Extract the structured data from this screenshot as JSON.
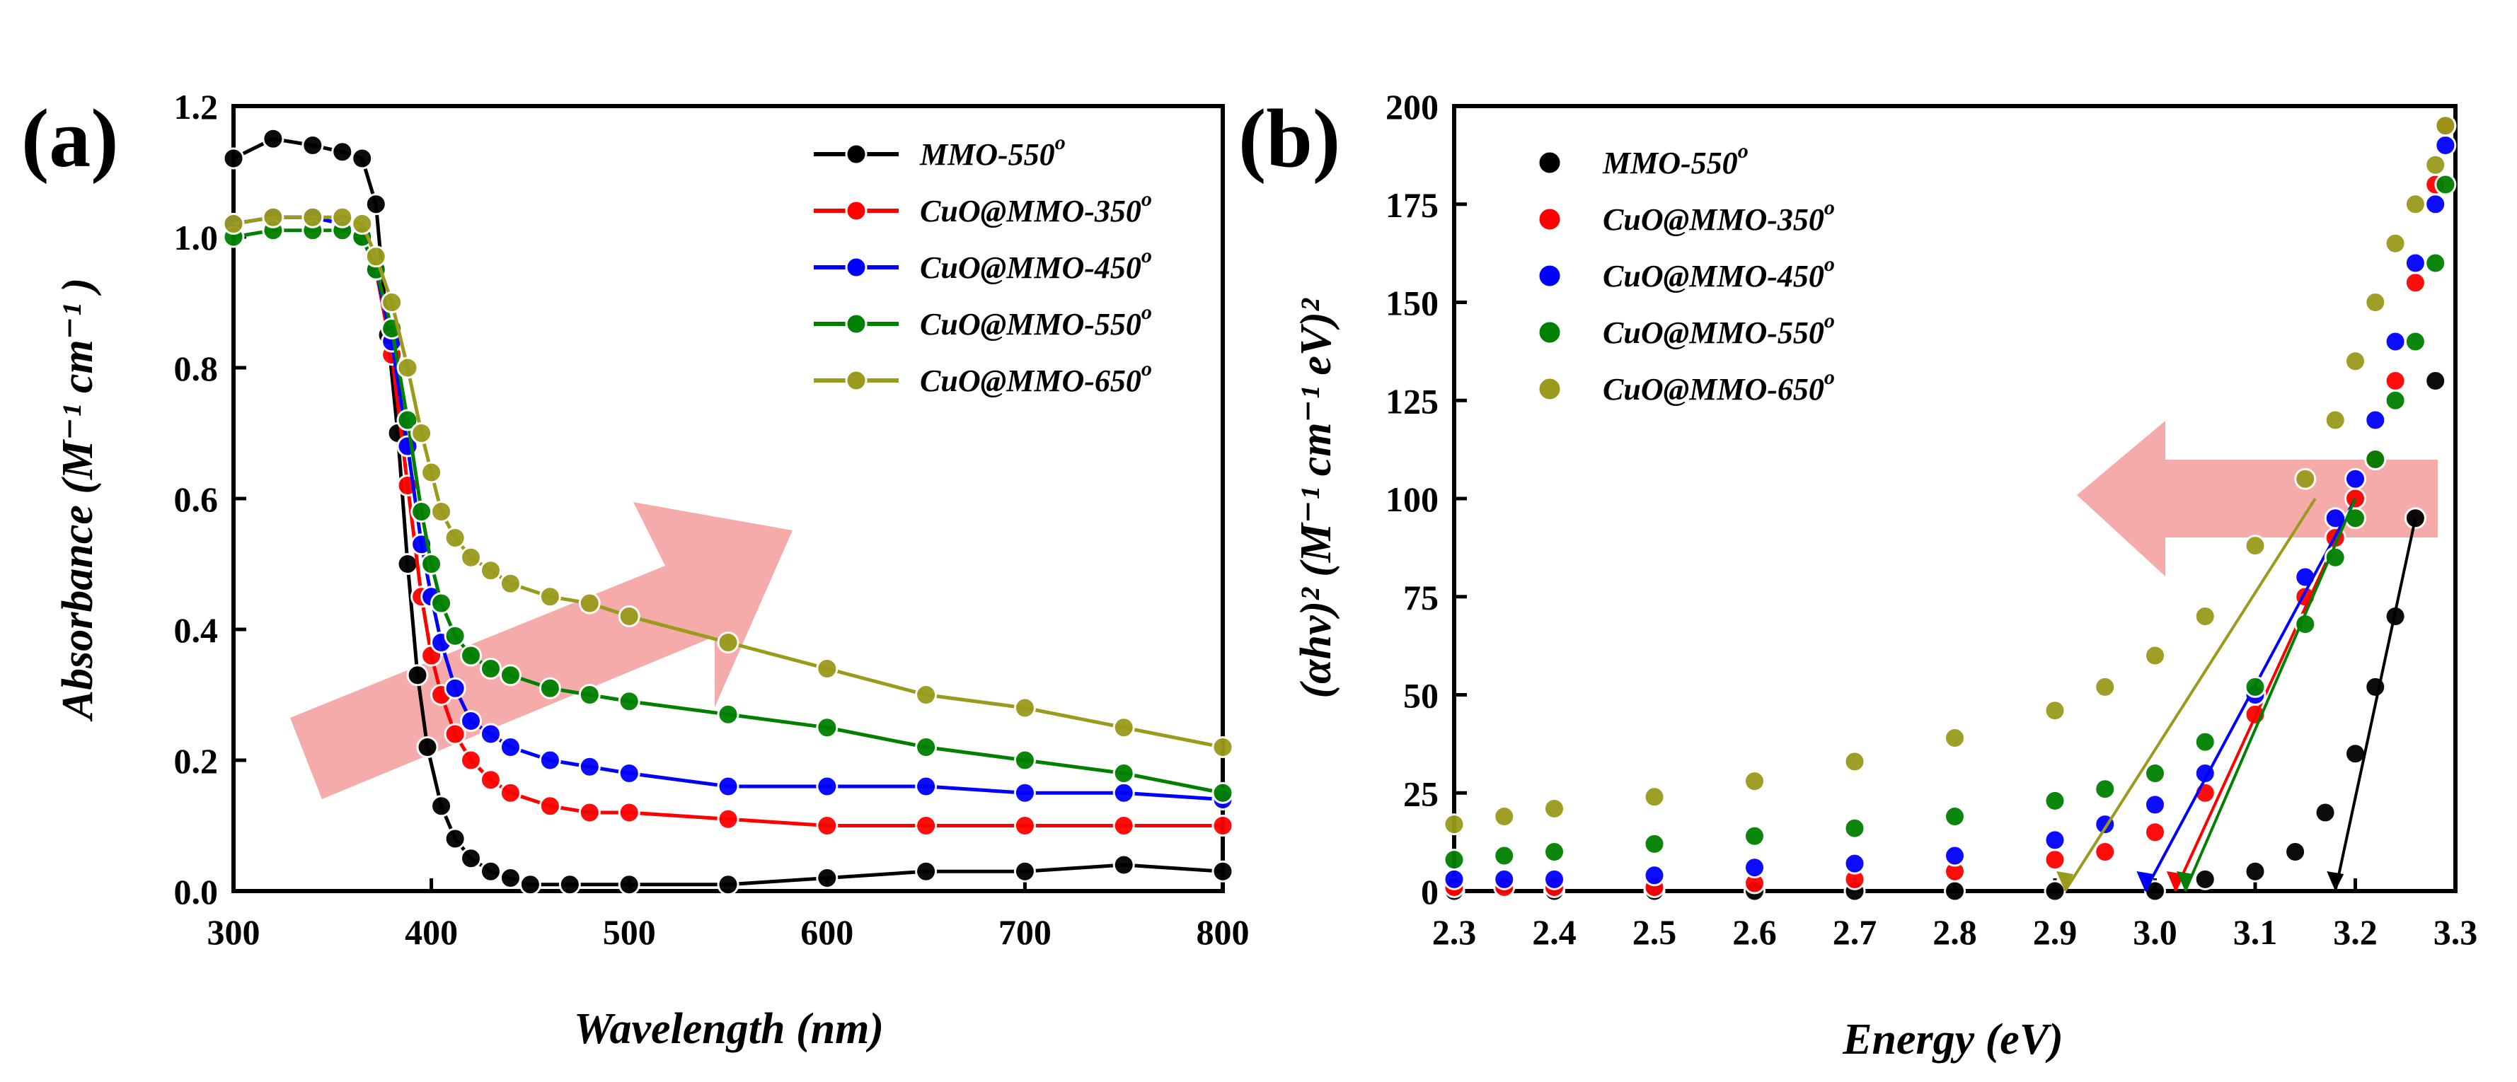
{
  "chart_data": [
    {
      "type": "line",
      "panel_label": "(a)",
      "xlabel": "Wavelength (nm)",
      "ylabel": "Absorbance (M⁻¹ cm⁻¹ )",
      "xlim": [
        300,
        800
      ],
      "ylim": [
        0,
        1.2
      ],
      "xticks": [
        300,
        400,
        500,
        600,
        700,
        800
      ],
      "yticks": [
        0.0,
        0.2,
        0.4,
        0.6,
        0.8,
        1.0,
        1.2
      ],
      "xtick_labels": [
        "300",
        "400",
        "500",
        "600",
        "700",
        "800"
      ],
      "ytick_labels": [
        "0.0",
        "0.2",
        "0.4",
        "0.6",
        "0.8",
        "1.0",
        "1.2"
      ],
      "legend_position": "top-right",
      "annotation": "arrow pointing toward longer wavelength / higher absorbance (red shift with temperature)",
      "series": [
        {
          "name": "MMO-550",
          "superscript": "o",
          "color": "#000000",
          "x": [
            300,
            320,
            340,
            355,
            365,
            372,
            378,
            383,
            388,
            393,
            398,
            405,
            412,
            420,
            430,
            440,
            450,
            470,
            500,
            550,
            600,
            650,
            700,
            750,
            800
          ],
          "y": [
            1.12,
            1.15,
            1.14,
            1.13,
            1.12,
            1.05,
            0.85,
            0.7,
            0.5,
            0.33,
            0.22,
            0.13,
            0.08,
            0.05,
            0.03,
            0.02,
            0.01,
            0.01,
            0.01,
            0.01,
            0.02,
            0.03,
            0.03,
            0.04,
            0.03
          ]
        },
        {
          "name": "CuO@MMO-350",
          "superscript": "o",
          "color": "#ff0000",
          "x": [
            300,
            320,
            340,
            355,
            365,
            372,
            380,
            388,
            395,
            400,
            405,
            412,
            420,
            430,
            440,
            460,
            480,
            500,
            550,
            600,
            650,
            700,
            750,
            800
          ],
          "y": [
            1.02,
            1.03,
            1.03,
            1.02,
            1.0,
            0.95,
            0.82,
            0.62,
            0.45,
            0.36,
            0.3,
            0.24,
            0.2,
            0.17,
            0.15,
            0.13,
            0.12,
            0.12,
            0.11,
            0.1,
            0.1,
            0.1,
            0.1,
            0.1
          ]
        },
        {
          "name": "CuO@MMO-450",
          "superscript": "o",
          "color": "#0000ff",
          "x": [
            300,
            320,
            340,
            355,
            365,
            372,
            380,
            388,
            395,
            400,
            405,
            412,
            420,
            430,
            440,
            460,
            480,
            500,
            550,
            600,
            650,
            700,
            750,
            800
          ],
          "y": [
            1.02,
            1.03,
            1.03,
            1.02,
            1.0,
            0.95,
            0.84,
            0.68,
            0.53,
            0.45,
            0.38,
            0.31,
            0.26,
            0.24,
            0.22,
            0.2,
            0.19,
            0.18,
            0.16,
            0.16,
            0.16,
            0.15,
            0.15,
            0.14
          ]
        },
        {
          "name": "CuO@MMO-550",
          "superscript": "o",
          "color": "#008000",
          "x": [
            300,
            320,
            340,
            355,
            365,
            372,
            380,
            388,
            395,
            400,
            405,
            412,
            420,
            430,
            440,
            460,
            480,
            500,
            550,
            600,
            650,
            700,
            750,
            800
          ],
          "y": [
            1.0,
            1.01,
            1.01,
            1.01,
            1.0,
            0.95,
            0.86,
            0.72,
            0.58,
            0.5,
            0.44,
            0.39,
            0.36,
            0.34,
            0.33,
            0.31,
            0.3,
            0.29,
            0.27,
            0.25,
            0.22,
            0.2,
            0.18,
            0.15
          ]
        },
        {
          "name": "CuO@MMO-650",
          "superscript": "o",
          "color": "#9a9a1c",
          "x": [
            300,
            320,
            340,
            355,
            365,
            372,
            380,
            388,
            395,
            400,
            405,
            412,
            420,
            430,
            440,
            460,
            480,
            500,
            550,
            600,
            650,
            700,
            750,
            800
          ],
          "y": [
            1.02,
            1.03,
            1.03,
            1.03,
            1.02,
            0.97,
            0.9,
            0.8,
            0.7,
            0.64,
            0.58,
            0.54,
            0.51,
            0.49,
            0.47,
            0.45,
            0.44,
            0.42,
            0.38,
            0.34,
            0.3,
            0.28,
            0.25,
            0.22
          ]
        }
      ]
    },
    {
      "type": "scatter",
      "panel_label": "(b)",
      "xlabel": "Energy (eV)",
      "ylabel": "(αhν)² (M⁻¹ cm⁻¹ eV)²",
      "xlim": [
        2.3,
        3.3
      ],
      "ylim": [
        0,
        200
      ],
      "xticks": [
        2.3,
        2.4,
        2.5,
        2.6,
        2.7,
        2.8,
        2.9,
        3.0,
        3.1,
        3.2,
        3.3
      ],
      "yticks": [
        0,
        25,
        50,
        75,
        100,
        125,
        150,
        175,
        200
      ],
      "xtick_labels": [
        "2.3",
        "2.4",
        "2.5",
        "2.6",
        "2.7",
        "2.8",
        "2.9",
        "3.0",
        "3.1",
        "3.2",
        "3.3"
      ],
      "ytick_labels": [
        "0",
        "25",
        "50",
        "75",
        "100",
        "125",
        "150",
        "175",
        "200"
      ],
      "legend_position": "top-left",
      "annotation": "arrow pointing toward lower band gap energy",
      "series": [
        {
          "name": "MMO-550",
          "superscript": "o",
          "color": "#000000",
          "x": [
            2.3,
            2.4,
            2.5,
            2.6,
            2.7,
            2.8,
            2.9,
            3.0,
            3.05,
            3.1,
            3.14,
            3.17,
            3.2,
            3.22,
            3.24,
            3.26,
            3.28,
            3.29
          ],
          "y": [
            0,
            0,
            0,
            0,
            0,
            0,
            0,
            0,
            3,
            5,
            10,
            20,
            35,
            52,
            70,
            95,
            130,
            195
          ],
          "fit_line": {
            "x": [
              3.18,
              3.26
            ],
            "y": [
              0,
              95
            ]
          },
          "band_gap_ev": 3.18
        },
        {
          "name": "CuO@MMO-350",
          "superscript": "o",
          "color": "#ff0000",
          "x": [
            2.3,
            2.35,
            2.4,
            2.5,
            2.6,
            2.7,
            2.8,
            2.9,
            2.95,
            3.0,
            3.05,
            3.1,
            3.15,
            3.18,
            3.2,
            3.22,
            3.24,
            3.26,
            3.28,
            3.29
          ],
          "y": [
            1,
            1,
            1,
            1,
            2,
            3,
            5,
            8,
            10,
            15,
            25,
            45,
            75,
            90,
            100,
            110,
            130,
            155,
            180,
            195
          ],
          "fit_line": {
            "x": [
              3.02,
              3.2
            ],
            "y": [
              0,
              100
            ]
          },
          "band_gap_ev": 3.02
        },
        {
          "name": "CuO@MMO-450",
          "superscript": "o",
          "color": "#0000ff",
          "x": [
            2.3,
            2.35,
            2.4,
            2.5,
            2.6,
            2.7,
            2.8,
            2.9,
            2.95,
            3.0,
            3.05,
            3.1,
            3.15,
            3.18,
            3.2,
            3.22,
            3.24,
            3.26,
            3.28,
            3.29
          ],
          "y": [
            3,
            3,
            3,
            4,
            6,
            7,
            9,
            13,
            17,
            22,
            30,
            50,
            80,
            95,
            105,
            120,
            140,
            160,
            175,
            190
          ],
          "fit_line": {
            "x": [
              2.99,
              3.2
            ],
            "y": [
              0,
              100
            ]
          },
          "band_gap_ev": 2.99
        },
        {
          "name": "CuO@MMO-550",
          "superscript": "o",
          "color": "#008000",
          "x": [
            2.3,
            2.35,
            2.4,
            2.5,
            2.6,
            2.7,
            2.8,
            2.9,
            2.95,
            3.0,
            3.05,
            3.1,
            3.15,
            3.18,
            3.2,
            3.22,
            3.24,
            3.26,
            3.28,
            3.29
          ],
          "y": [
            8,
            9,
            10,
            12,
            14,
            16,
            19,
            23,
            26,
            30,
            38,
            52,
            68,
            85,
            95,
            110,
            125,
            140,
            160,
            180
          ],
          "fit_line": {
            "x": [
              3.03,
              3.2
            ],
            "y": [
              0,
              100
            ]
          },
          "band_gap_ev": 3.03
        },
        {
          "name": "CuO@MMO-650",
          "superscript": "o",
          "color": "#9a9a1c",
          "x": [
            2.3,
            2.35,
            2.4,
            2.5,
            2.6,
            2.7,
            2.8,
            2.9,
            2.95,
            3.0,
            3.05,
            3.1,
            3.15,
            3.18,
            3.2,
            3.22,
            3.24,
            3.26,
            3.28,
            3.29
          ],
          "y": [
            17,
            19,
            21,
            24,
            28,
            33,
            39,
            46,
            52,
            60,
            70,
            88,
            105,
            120,
            135,
            150,
            165,
            175,
            185,
            195
          ],
          "fit_line": {
            "x": [
              2.91,
              3.16
            ],
            "y": [
              0,
              100
            ]
          },
          "band_gap_ev": 2.91
        }
      ]
    }
  ]
}
